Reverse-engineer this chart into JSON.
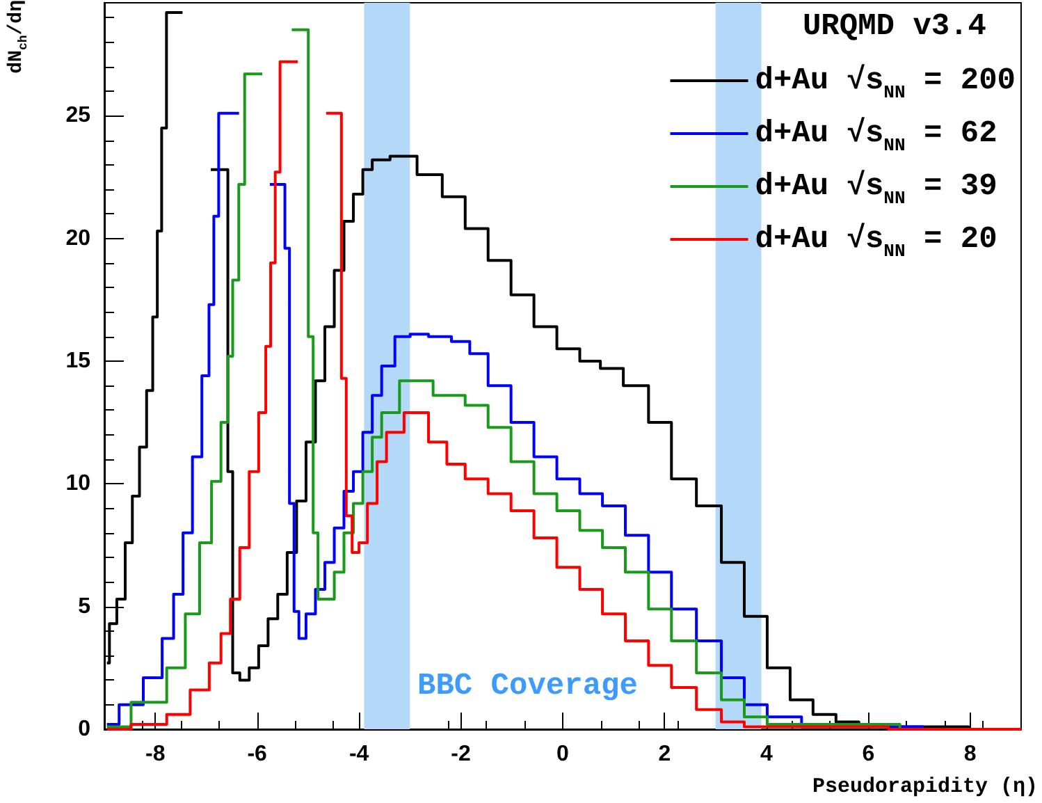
{
  "chart_data": {
    "type": "step",
    "xlabel": "Pseudorapidity (η)",
    "ylabel": "dN$_{ch}$/dη",
    "legend_title": "URQMD v3.4",
    "xlim": [
      -9,
      9
    ],
    "ylim": [
      0,
      29.6
    ],
    "xticks": [
      -8,
      -6,
      -4,
      -2,
      0,
      2,
      4,
      6,
      8
    ],
    "yticks": [
      0,
      5,
      10,
      15,
      20,
      25
    ],
    "grid": false,
    "legend": "top right",
    "marker": "none",
    "line_style": "solid",
    "annotations": [
      "BBC Coverage"
    ],
    "bands": [
      {
        "axis": "x",
        "from": -3.9,
        "to": -3.0,
        "color": "#b3d8f8"
      },
      {
        "axis": "x",
        "from": 3.0,
        "to": 3.9,
        "color": "#b3d8f8"
      }
    ],
    "series": [
      {
        "name": "d+Au √s$_{NN}$ = 200",
        "color": "#000000",
        "x": [
          -8.95,
          -8.85,
          -8.66,
          -8.52,
          -8.38,
          -8.24,
          -8.1,
          -8.0,
          -7.92,
          -7.83,
          -7.73,
          -7.2,
          -6.62,
          -6.53,
          -6.43,
          -6.25,
          -6.06,
          -5.88,
          -5.69,
          -5.5,
          -5.32,
          -5.13,
          -4.95,
          -4.76,
          -4.58,
          -4.39,
          -4.2,
          -4.02,
          -3.83,
          -3.65,
          -3.13,
          -2.59,
          -2.14,
          -1.69,
          -1.24,
          -0.79,
          -0.34,
          0.11,
          0.56,
          0.92,
          1.46,
          1.91,
          2.36,
          2.89,
          3.34,
          3.79,
          4.24,
          4.69,
          5.14,
          5.59,
          6.04,
          6.94,
          9.0
        ],
        "values": [
          2.7,
          4.3,
          5.3,
          7.6,
          9.5,
          11.5,
          13.8,
          16.8,
          20.3,
          24.5,
          29.2,
          null,
          22.8,
          10.5,
          2.3,
          2.0,
          2.5,
          3.4,
          4.5,
          5.5,
          7.2,
          9.3,
          11.7,
          14.2,
          16.4,
          18.7,
          20.7,
          21.8,
          22.8,
          23.2,
          23.35,
          22.6,
          21.7,
          20.4,
          19.1,
          17.7,
          16.4,
          15.5,
          15.0,
          14.7,
          14.0,
          12.5,
          10.2,
          9.1,
          6.8,
          4.6,
          2.5,
          1.2,
          0.6,
          0.3,
          0.2,
          0.1,
          0
        ]
      },
      {
        "name": "d+Au √s$_{NN}$ = 62",
        "color": "#0000ff",
        "x": [
          -8.95,
          -8.47,
          -8.0,
          -7.73,
          -7.55,
          -7.36,
          -7.18,
          -6.99,
          -6.9,
          -6.8,
          -6.71,
          -6.0,
          -5.5,
          -5.41,
          -5.32,
          -5.23,
          -5.13,
          -4.95,
          -4.76,
          -4.58,
          -4.39,
          -4.2,
          -4.02,
          -3.83,
          -3.65,
          -3.46,
          -3.13,
          -2.86,
          -2.41,
          -1.96,
          -1.69,
          -1.24,
          -0.79,
          -0.34,
          0.11,
          0.56,
          1.0,
          1.46,
          1.91,
          2.36,
          2.89,
          3.34,
          3.79,
          4.24,
          5.14,
          9.0
        ],
        "values": [
          0.2,
          1.0,
          2.1,
          3.7,
          5.5,
          8.0,
          11.1,
          14.4,
          17.3,
          20.9,
          25.1,
          null,
          22.2,
          19.6,
          9.2,
          4.8,
          3.7,
          4.7,
          5.7,
          6.8,
          8.2,
          9.7,
          10.5,
          12.1,
          13.6,
          14.8,
          16.0,
          16.1,
          16.0,
          15.8,
          15.3,
          14.0,
          12.5,
          11.1,
          10.2,
          9.6,
          9.1,
          7.9,
          6.4,
          4.9,
          3.6,
          2.1,
          1.0,
          0.5,
          0.1,
          0
        ]
      },
      {
        "name": "d+Au √s$_{NN}$ = 39",
        "color": "#1a9a1a",
        "x": [
          -8.95,
          -8.0,
          -7.55,
          -7.27,
          -6.99,
          -6.8,
          -6.62,
          -6.53,
          -6.43,
          -6.29,
          -6.2,
          -5.6,
          -5.04,
          -4.95,
          -4.85,
          -4.76,
          -4.58,
          -4.39,
          -4.2,
          -4.02,
          -3.83,
          -3.65,
          -3.46,
          -2.95,
          -2.14,
          -1.69,
          -1.24,
          -0.79,
          -0.34,
          0.11,
          0.56,
          1.0,
          1.46,
          1.91,
          2.36,
          2.89,
          3.34,
          3.79,
          4.24,
          9.0
        ],
        "values": [
          0.1,
          1.1,
          2.5,
          4.7,
          7.6,
          10.1,
          12.5,
          15.2,
          18.3,
          22.2,
          26.7,
          null,
          28.5,
          16.0,
          8.0,
          5.3,
          5.3,
          6.4,
          8.0,
          9.2,
          10.5,
          11.9,
          12.9,
          14.2,
          13.6,
          13.2,
          12.3,
          10.9,
          9.6,
          8.9,
          8.1,
          7.4,
          6.4,
          4.9,
          3.6,
          2.3,
          1.2,
          0.5,
          0.2,
          0
        ]
      },
      {
        "name": "d+Au √s$_{NN}$ = 20",
        "color": "#ff0000",
        "x": [
          -8.95,
          -8.0,
          -7.55,
          -7.08,
          -6.8,
          -6.62,
          -6.43,
          -6.25,
          -6.06,
          -5.88,
          -5.78,
          -5.69,
          -5.6,
          -5.5,
          -4.9,
          -4.39,
          -4.3,
          -4.2,
          -4.07,
          -3.93,
          -3.74,
          -3.55,
          -3.37,
          -2.86,
          -2.41,
          -2.14,
          -1.69,
          -1.24,
          -0.79,
          -0.34,
          0.11,
          0.56,
          1.0,
          1.46,
          1.91,
          2.36,
          2.89,
          3.34,
          3.79,
          9.0
        ],
        "values": [
          0,
          0.2,
          0.6,
          1.6,
          2.7,
          3.9,
          5.3,
          7.4,
          10.5,
          12.9,
          15.6,
          19.0,
          22.7,
          27.2,
          null,
          25.1,
          14.3,
          8.7,
          7.2,
          7.6,
          9.2,
          10.9,
          12.1,
          12.9,
          11.7,
          10.8,
          10.2,
          9.6,
          8.9,
          7.8,
          6.6,
          5.7,
          4.7,
          3.6,
          2.6,
          1.7,
          0.8,
          0.3,
          0.1,
          0
        ]
      }
    ]
  }
}
